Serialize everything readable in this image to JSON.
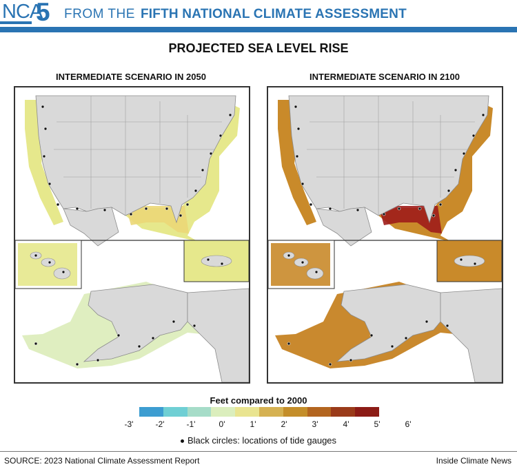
{
  "header": {
    "logo_text": "NCA",
    "logo_number": "5",
    "prefix": "FROM THE",
    "title": "FIFTH NATIONAL CLIMATE ASSESSMENT",
    "brand_color": "#2a74b3"
  },
  "figure": {
    "title": "PROJECTED SEA LEVEL RISE",
    "panels": [
      {
        "title": "INTERMEDIATE SCENARIO IN 2050",
        "coastal_fill": "#e6e88c",
        "alaska_fill": "#dfeec0",
        "gulf_fill": "#ebd777"
      },
      {
        "title": "INTERMEDIATE SCENARIO IN 2100",
        "coastal_fill": "#c98a2a",
        "alaska_fill": "#c9892e",
        "gulf_fill": "#9e1c1a"
      }
    ]
  },
  "legend": {
    "title": "Feet compared to 2000",
    "colors": [
      "#3d9dd1",
      "#6fcfd4",
      "#a6dcc8",
      "#dbeebd",
      "#e9e490",
      "#d5b152",
      "#c48e2a",
      "#b3651f",
      "#9a3b1a",
      "#8c1c16"
    ],
    "ticks": [
      "-3'",
      "-2'",
      "-1'",
      "0'",
      "1'",
      "2'",
      "3'",
      "4'",
      "5'",
      "6'"
    ],
    "gauge_note": "Black circles: locations of tide gauges"
  },
  "footer": {
    "source": "SOURCE: 2023 National Climate Assessment Report",
    "credit": "Inside Climate News"
  }
}
